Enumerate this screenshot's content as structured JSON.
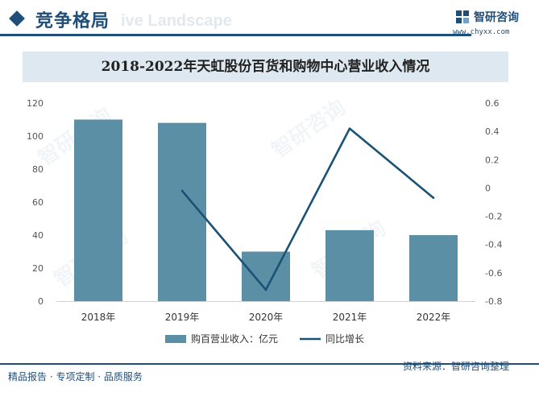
{
  "header": {
    "section_title": "竞争格局",
    "ghost_text": "ive Landscape",
    "logo_name": "智研咨询",
    "logo_url": "www.chyxx.com"
  },
  "watermark": {
    "text": "智研咨询"
  },
  "footer": {
    "left_text": "精品报告 · 专项定制 · 品质服务",
    "source_text": "资料来源：智研咨询整理"
  },
  "colors": {
    "bar": "#5b8fa6",
    "line": "#1a5276",
    "brand": "#1f4e79"
  },
  "chart_data": {
    "type": "bar",
    "title": "2018-2022年天虹股份百货和购物中心营业收入情况",
    "categories": [
      "2018年",
      "2019年",
      "2020年",
      "2021年",
      "2022年"
    ],
    "series": [
      {
        "name": "购百营业收入：亿元",
        "type": "bar",
        "axis": "left",
        "values": [
          110,
          108,
          30,
          43,
          40
        ]
      },
      {
        "name": "同比增长",
        "type": "line",
        "axis": "right",
        "values": [
          null,
          -0.02,
          -0.72,
          0.42,
          -0.07
        ]
      }
    ],
    "y_left": {
      "min": 0,
      "max": 120,
      "ticks": [
        "0",
        "20",
        "40",
        "60",
        "80",
        "100",
        "120"
      ]
    },
    "y_right": {
      "min": -0.8,
      "max": 0.6,
      "ticks": [
        "-0.8",
        "-0.6",
        "-0.4",
        "-0.2",
        "0",
        "0.2",
        "0.4",
        "0.6"
      ]
    },
    "legend": "bottom"
  }
}
